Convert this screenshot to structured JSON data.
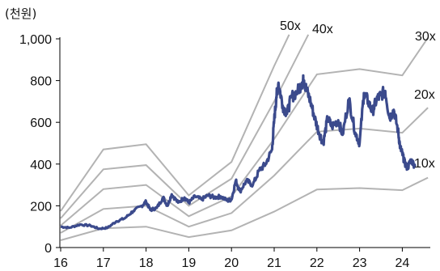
{
  "chart_data": {
    "type": "line",
    "title": "",
    "unit_label": "(천원)",
    "xlabel": "",
    "ylabel": "",
    "x_ticks": [
      "16",
      "17",
      "18",
      "19",
      "20",
      "21",
      "22",
      "23",
      "24"
    ],
    "y_ticks": [
      "0",
      "200",
      "400",
      "600",
      "800",
      "1,000"
    ],
    "xlim": [
      2016.0,
      2024.6
    ],
    "ylim": [
      0,
      1000
    ],
    "grid": false,
    "legend": "none",
    "colors": {
      "price": "#3b4a8c",
      "band": "#b3b3b3",
      "axis": "#000000"
    },
    "band_labels": [
      "50x",
      "40x",
      "30x",
      "20x",
      "10x"
    ],
    "bands": [
      {
        "label": "50x",
        "x": [
          2016.0,
          2017.0,
          2018.0,
          2019.0,
          2020.0,
          2021.0,
          2021.35
        ],
        "y": [
          175,
          470,
          495,
          250,
          410,
          870,
          1020
        ]
      },
      {
        "label": "40x",
        "x": [
          2016.0,
          2017.0,
          2018.0,
          2019.0,
          2020.0,
          2021.0,
          2021.8
        ],
        "y": [
          140,
          375,
          395,
          200,
          330,
          700,
          1020
        ]
      },
      {
        "label": "30x",
        "x": [
          2016.0,
          2017.0,
          2018.0,
          2019.0,
          2020.0,
          2021.0,
          2022.0,
          2023.0,
          2024.0,
          2024.6
        ],
        "y": [
          105,
          280,
          300,
          150,
          245,
          520,
          830,
          855,
          825,
          1005
        ]
      },
      {
        "label": "20x",
        "x": [
          2016.0,
          2017.0,
          2018.0,
          2019.0,
          2020.0,
          2021.0,
          2022.0,
          2023.0,
          2024.0,
          2024.6
        ],
        "y": [
          70,
          185,
          200,
          100,
          165,
          345,
          555,
          570,
          550,
          670
        ]
      },
      {
        "label": "10x",
        "x": [
          2016.0,
          2017.0,
          2018.0,
          2019.0,
          2020.0,
          2021.0,
          2022.0,
          2023.0,
          2024.0,
          2024.6
        ],
        "y": [
          35,
          92,
          100,
          50,
          82,
          172,
          278,
          285,
          275,
          335
        ]
      }
    ],
    "series": [
      {
        "x": [
          2016.0,
          2016.2,
          2016.45,
          2016.7,
          2016.9,
          2017.1,
          2017.3,
          2017.5,
          2017.7,
          2017.9,
          2018.0,
          2018.1,
          2018.25,
          2018.4,
          2018.5,
          2018.6,
          2018.75,
          2018.9,
          2019.0,
          2019.15,
          2019.3,
          2019.45,
          2019.6,
          2019.75,
          2019.9,
          2020.0,
          2020.1,
          2020.2,
          2020.35,
          2020.5,
          2020.65,
          2020.8,
          2020.95,
          2021.0,
          2021.05,
          2021.1,
          2021.2,
          2021.3,
          2021.4,
          2021.55,
          2021.65,
          2021.7,
          2021.75,
          2021.85,
          2021.95,
          2022.05,
          2022.15,
          2022.25,
          2022.35,
          2022.5,
          2022.6,
          2022.75,
          2022.9,
          2023.0,
          2023.1,
          2023.2,
          2023.3,
          2023.4,
          2023.5,
          2023.6,
          2023.7,
          2023.8,
          2023.9,
          2023.95,
          2024.0,
          2024.05,
          2024.12,
          2024.2,
          2024.3
        ],
        "y": [
          100,
          95,
          110,
          105,
          90,
          95,
          125,
          140,
          175,
          200,
          220,
          180,
          190,
          240,
          200,
          255,
          215,
          240,
          215,
          245,
          230,
          250,
          240,
          245,
          225,
          230,
          320,
          270,
          320,
          300,
          370,
          400,
          470,
          610,
          720,
          790,
          680,
          640,
          720,
          750,
          790,
          800,
          760,
          700,
          620,
          550,
          500,
          620,
          580,
          610,
          540,
          710,
          550,
          500,
          740,
          700,
          650,
          710,
          730,
          750,
          620,
          660,
          560,
          480,
          450,
          410,
          380,
          420,
          390
        ]
      }
    ]
  }
}
